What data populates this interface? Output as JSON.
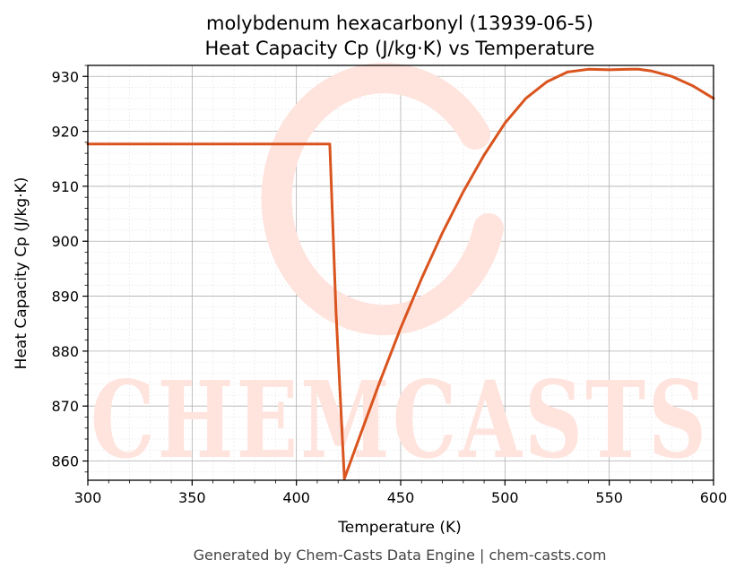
{
  "chart_data": {
    "type": "line",
    "title": "molybdenum hexacarbonyl (13939-06-5)",
    "subtitle": "Heat Capacity Cp (J/kg·K) vs Temperature",
    "xlabel": "Temperature (K)",
    "ylabel": "Heat Capacity Cp (J/kg·K)",
    "xlim": [
      300,
      600
    ],
    "ylim": [
      856.5,
      932
    ],
    "xticks": [
      300,
      350,
      400,
      450,
      500,
      550,
      600
    ],
    "yticks": [
      860,
      870,
      880,
      890,
      900,
      910,
      920,
      930
    ],
    "grid": true,
    "line_color": "#d9541e",
    "series": [
      {
        "x": [
          300,
          350,
          400,
          416,
          419,
          423,
          430,
          440,
          450,
          460,
          470,
          480,
          490,
          500,
          510,
          520,
          530,
          540,
          550,
          560,
          564,
          570,
          580,
          590,
          600
        ],
        "y": [
          917.7,
          917.7,
          917.7,
          917.7,
          887.0,
          856.8,
          864.1,
          874.4,
          884.2,
          893.2,
          901.5,
          909.0,
          915.7,
          921.5,
          926.0,
          929.0,
          930.8,
          931.3,
          931.2,
          931.3,
          931.3,
          931.0,
          930.0,
          928.3,
          926.0
        ]
      }
    ]
  },
  "watermark": {
    "text": "CHEMCASTS",
    "color": "#ffe3dd"
  },
  "footer": "Generated by Chem-Casts Data Engine | chem-casts.com"
}
